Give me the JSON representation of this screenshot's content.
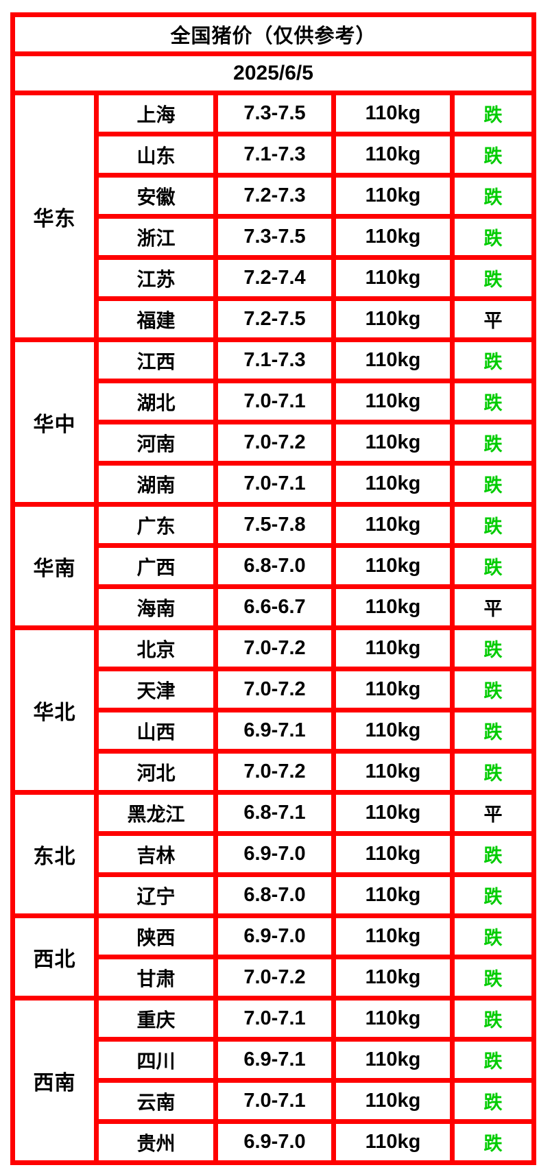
{
  "title": "全国猪价（仅供参考）",
  "date": "2025/6/5",
  "colors": {
    "header_bg": "#ed6a1c",
    "grid_border": "#ff0000",
    "trend_down_green": "#00cc00",
    "trend_flat_black": "#000000",
    "text": "#000000",
    "cell_bg": "#ffffff"
  },
  "legend": {
    "down_char": "跌",
    "flat_char": "平"
  },
  "chart_data": {
    "type": "table",
    "title": "全国猪价（仅供参考）",
    "date": "2025/6/5",
    "regions": [
      {
        "name": "华东",
        "rows": [
          {
            "province": "上海",
            "price": "7.3-7.5",
            "weight": "110kg",
            "trend": "跌"
          },
          {
            "province": "山东",
            "price": "7.1-7.3",
            "weight": "110kg",
            "trend": "跌"
          },
          {
            "province": "安徽",
            "price": "7.2-7.3",
            "weight": "110kg",
            "trend": "跌"
          },
          {
            "province": "浙江",
            "price": "7.3-7.5",
            "weight": "110kg",
            "trend": "跌"
          },
          {
            "province": "江苏",
            "price": "7.2-7.4",
            "weight": "110kg",
            "trend": "跌"
          },
          {
            "province": "福建",
            "price": "7.2-7.5",
            "weight": "110kg",
            "trend": "平"
          }
        ]
      },
      {
        "name": "华中",
        "rows": [
          {
            "province": "江西",
            "price": "7.1-7.3",
            "weight": "110kg",
            "trend": "跌"
          },
          {
            "province": "湖北",
            "price": "7.0-7.1",
            "weight": "110kg",
            "trend": "跌"
          },
          {
            "province": "河南",
            "price": "7.0-7.2",
            "weight": "110kg",
            "trend": "跌"
          },
          {
            "province": "湖南",
            "price": "7.0-7.1",
            "weight": "110kg",
            "trend": "跌"
          }
        ]
      },
      {
        "name": "华南",
        "rows": [
          {
            "province": "广东",
            "price": "7.5-7.8",
            "weight": "110kg",
            "trend": "跌"
          },
          {
            "province": "广西",
            "price": "6.8-7.0",
            "weight": "110kg",
            "trend": "跌"
          },
          {
            "province": "海南",
            "price": "6.6-6.7",
            "weight": "110kg",
            "trend": "平"
          }
        ]
      },
      {
        "name": "华北",
        "rows": [
          {
            "province": "北京",
            "price": "7.0-7.2",
            "weight": "110kg",
            "trend": "跌"
          },
          {
            "province": "天津",
            "price": "7.0-7.2",
            "weight": "110kg",
            "trend": "跌"
          },
          {
            "province": "山西",
            "price": "6.9-7.1",
            "weight": "110kg",
            "trend": "跌"
          },
          {
            "province": "河北",
            "price": "7.0-7.2",
            "weight": "110kg",
            "trend": "跌"
          }
        ]
      },
      {
        "name": "东北",
        "rows": [
          {
            "province": "黑龙江",
            "price": "6.8-7.1",
            "weight": "110kg",
            "trend": "平"
          },
          {
            "province": "吉林",
            "price": "6.9-7.0",
            "weight": "110kg",
            "trend": "跌"
          },
          {
            "province": "辽宁",
            "price": "6.8-7.0",
            "weight": "110kg",
            "trend": "跌"
          }
        ]
      },
      {
        "name": "西北",
        "rows": [
          {
            "province": "陕西",
            "price": "6.9-7.0",
            "weight": "110kg",
            "trend": "跌"
          },
          {
            "province": "甘肃",
            "price": "7.0-7.2",
            "weight": "110kg",
            "trend": "跌"
          }
        ]
      },
      {
        "name": "西南",
        "rows": [
          {
            "province": "重庆",
            "price": "7.0-7.1",
            "weight": "110kg",
            "trend": "跌"
          },
          {
            "province": "四川",
            "price": "6.9-7.1",
            "weight": "110kg",
            "trend": "跌"
          },
          {
            "province": "云南",
            "price": "7.0-7.1",
            "weight": "110kg",
            "trend": "跌"
          },
          {
            "province": "贵州",
            "price": "6.9-7.0",
            "weight": "110kg",
            "trend": "跌"
          }
        ]
      }
    ]
  }
}
